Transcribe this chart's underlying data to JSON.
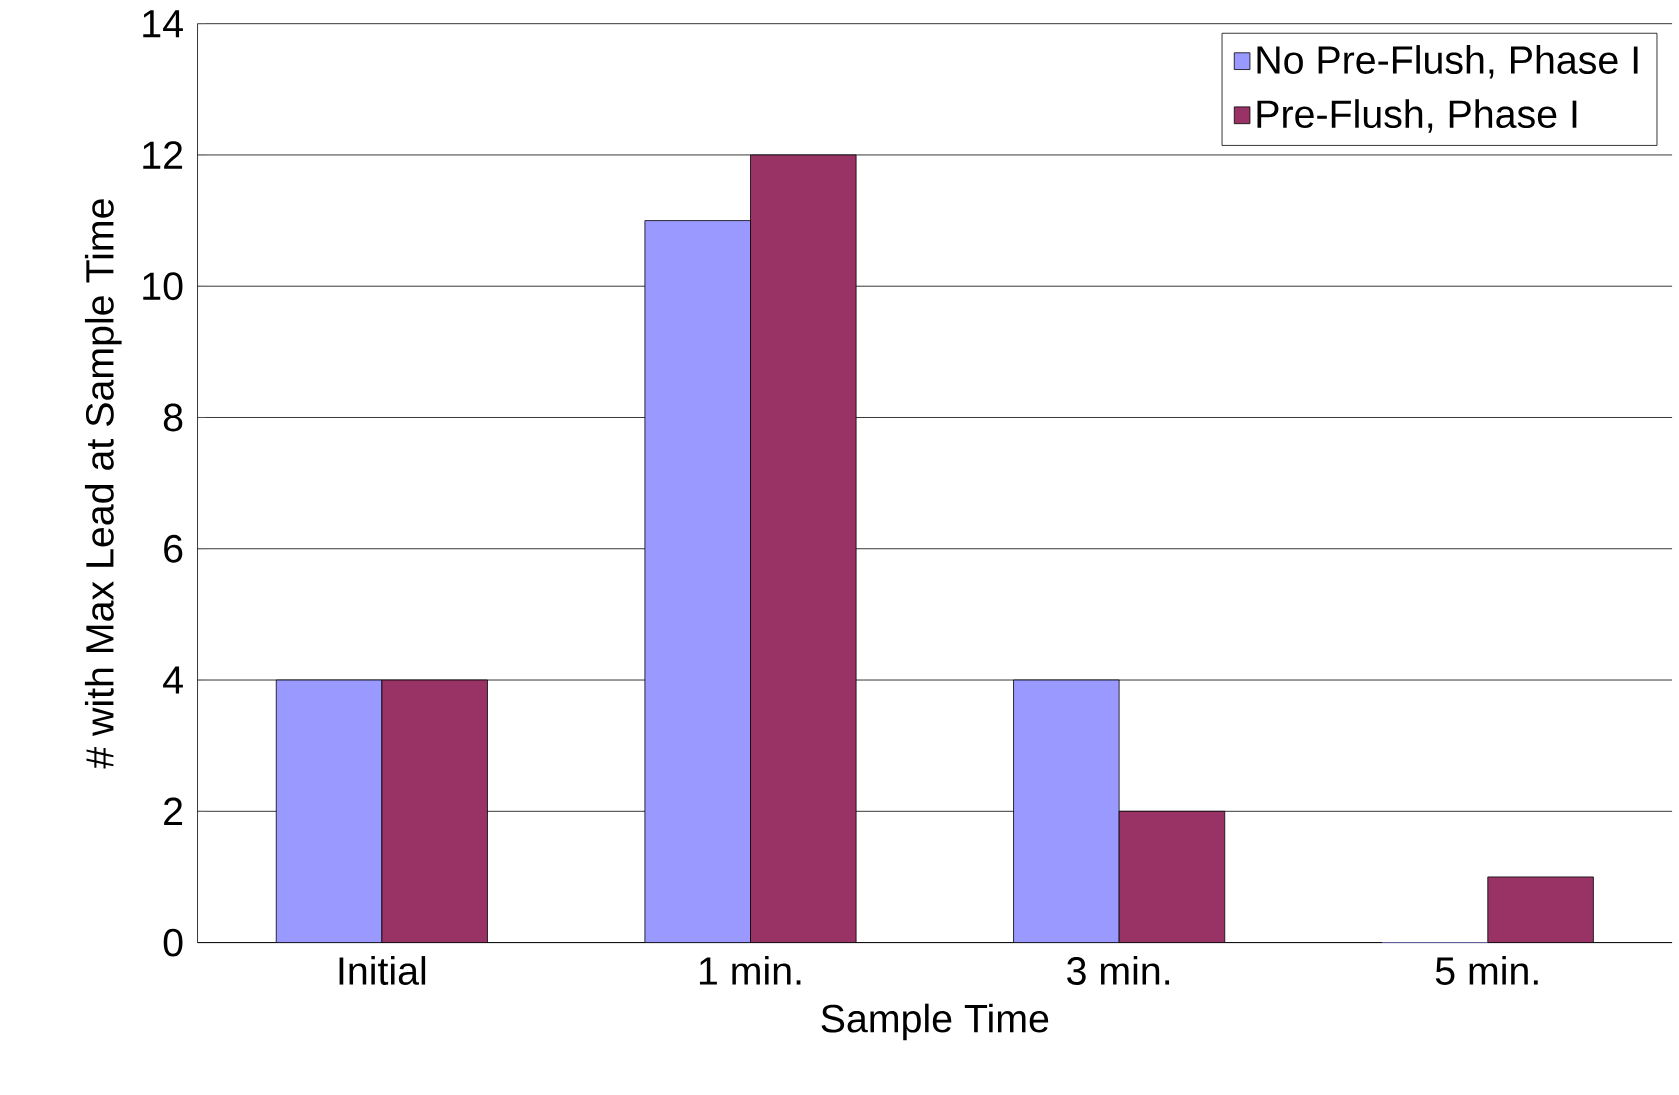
{
  "chart_data": {
    "type": "bar",
    "xlabel": "Sample Time",
    "ylabel": "# with Max Lead at Sample Time",
    "categories": [
      "Initial",
      "1 min.",
      "3 min.",
      "5 min."
    ],
    "series": [
      {
        "name": "No Pre-Flush, Phase I",
        "color": "#9999ff",
        "values": [
          4,
          11,
          4,
          0
        ]
      },
      {
        "name": "Pre-Flush, Phase I",
        "color": "#993366",
        "values": [
          4,
          12,
          2,
          1
        ]
      }
    ],
    "ylim": [
      0,
      14
    ],
    "yticks": [
      0,
      2,
      4,
      6,
      8,
      10,
      12,
      14
    ],
    "grid": "y",
    "legend": "top right"
  }
}
